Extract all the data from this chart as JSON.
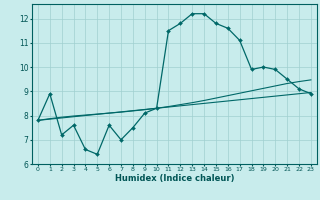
{
  "title": "",
  "xlabel": "Humidex (Indice chaleur)",
  "ylabel": "",
  "bg_color": "#c8ecec",
  "line_color": "#006868",
  "grid_color": "#a0d0d0",
  "xlim": [
    -0.5,
    23.5
  ],
  "ylim": [
    6,
    12.6
  ],
  "yticks": [
    6,
    7,
    8,
    9,
    10,
    11,
    12
  ],
  "xtick_labels": [
    "0",
    "1",
    "2",
    "3",
    "4",
    "5",
    "6",
    "7",
    "8",
    "9",
    "10",
    "11",
    "12",
    "13",
    "14",
    "15",
    "16",
    "17",
    "18",
    "19",
    "20",
    "21",
    "22",
    "23"
  ],
  "series_main": [
    7.8,
    8.9,
    7.2,
    7.6,
    6.6,
    6.4,
    7.6,
    7.0,
    7.5,
    8.1,
    8.3,
    11.5,
    11.8,
    12.2,
    12.2,
    11.8,
    11.6,
    11.1,
    9.9,
    10.0,
    9.9,
    9.5,
    9.1,
    8.9
  ],
  "series_line1": [
    7.8,
    7.85,
    7.9,
    7.95,
    8.0,
    8.05,
    8.1,
    8.15,
    8.2,
    8.25,
    8.3,
    8.35,
    8.4,
    8.45,
    8.5,
    8.55,
    8.6,
    8.65,
    8.7,
    8.75,
    8.8,
    8.85,
    8.9,
    8.95
  ],
  "series_line2": [
    7.8,
    7.87,
    7.93,
    7.98,
    8.02,
    8.06,
    8.1,
    8.14,
    8.19,
    8.24,
    8.3,
    8.37,
    8.45,
    8.53,
    8.62,
    8.72,
    8.82,
    8.92,
    9.02,
    9.12,
    9.22,
    9.32,
    9.4,
    9.47
  ]
}
